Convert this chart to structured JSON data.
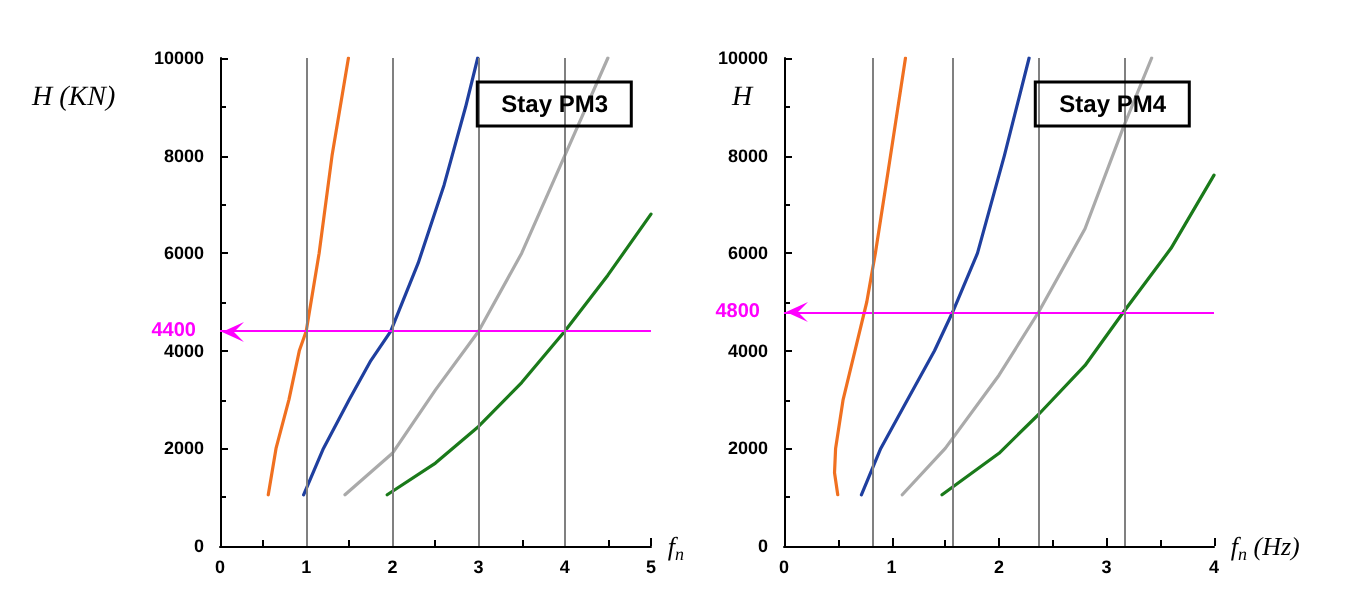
{
  "chart_data": [
    {
      "type": "line",
      "title": "Stay PM3",
      "xlabel": "f$_{n}$",
      "ylabel": "H (KN)",
      "xlim": [
        0,
        5
      ],
      "xticks": [
        0,
        1,
        2,
        3,
        4,
        5
      ],
      "ylim": [
        0,
        10000
      ],
      "yticks": [
        0,
        2000,
        4000,
        6000,
        8000,
        10000
      ],
      "grid": false,
      "marker": "none",
      "line_style": "solid",
      "series": [
        {
          "color": "#f07020",
          "x": [
            0.56,
            0.65,
            0.8,
            0.92,
            1.0,
            1.15,
            1.3,
            1.49
          ],
          "values": [
            1050,
            2000,
            3000,
            4000,
            4400,
            6000,
            8000,
            10000
          ]
        },
        {
          "color": "#1f3f9f",
          "x": [
            0.97,
            1.2,
            1.5,
            1.75,
            1.98,
            2.3,
            2.6,
            2.85,
            2.99
          ],
          "values": [
            1050,
            2000,
            3000,
            3800,
            4400,
            5800,
            7400,
            9000,
            10000
          ]
        },
        {
          "color": "#aaaaaa",
          "x": [
            1.45,
            2,
            2.5,
            3,
            3.5,
            4,
            4.5
          ],
          "values": [
            1050,
            1900,
            3200,
            4400,
            6000,
            8000,
            10000
          ]
        },
        {
          "color": "#1a7a1a",
          "x": [
            1.94,
            2.5,
            3,
            3.5,
            4,
            4.5,
            5
          ],
          "values": [
            1050,
            1700,
            2450,
            3350,
            4400,
            5550,
            6800
          ]
        }
      ],
      "ref_lines": [
        {
          "axis": "y",
          "value": 4400,
          "label": "4400",
          "color": "#ff00ff"
        },
        {
          "axis": "x",
          "value": 1,
          "color": "#808080"
        },
        {
          "axis": "x",
          "value": 2,
          "color": "#808080"
        },
        {
          "axis": "x",
          "value": 3,
          "color": "#808080"
        },
        {
          "axis": "x",
          "value": 4,
          "color": "#808080"
        }
      ]
    },
    {
      "type": "line",
      "title": "Stay PM4",
      "xlabel": "f$_{n}$ (Hz)",
      "ylabel": "H",
      "xlim": [
        0,
        4
      ],
      "xticks": [
        0,
        1,
        2,
        3,
        4
      ],
      "ylim": [
        0,
        10000
      ],
      "yticks": [
        0,
        2000,
        4000,
        6000,
        8000,
        10000
      ],
      "grid": false,
      "marker": "none",
      "line_style": "solid",
      "series": [
        {
          "color": "#f07020",
          "x": [
            0.5,
            0.47,
            0.48,
            0.55,
            0.66,
            0.77,
            0.85,
            0.97,
            1.13
          ],
          "values": [
            1050,
            1500,
            2000,
            3000,
            4000,
            5000,
            6000,
            7700,
            10000
          ]
        },
        {
          "color": "#1f3f9f",
          "x": [
            0.72,
            0.9,
            1.15,
            1.4,
            1.57,
            1.8,
            2.05,
            2.28
          ],
          "values": [
            1050,
            2000,
            3000,
            4000,
            4800,
            6000,
            8000,
            10000
          ]
        },
        {
          "color": "#aaaaaa",
          "x": [
            1.1,
            1.5,
            2,
            2.37,
            2.8,
            3.16,
            3.42
          ],
          "values": [
            1050,
            2000,
            3500,
            4800,
            6500,
            8600,
            10000
          ]
        },
        {
          "color": "#1a7a1a",
          "x": [
            1.47,
            2,
            2.37,
            2.8,
            3.16,
            3.6,
            4
          ],
          "values": [
            1050,
            1900,
            2700,
            3700,
            4800,
            6100,
            7600
          ]
        }
      ],
      "ref_lines": [
        {
          "axis": "y",
          "value": 4800,
          "label": "4800",
          "color": "#ff00ff"
        },
        {
          "axis": "x",
          "value": 0.82,
          "color": "#808080"
        },
        {
          "axis": "x",
          "value": 1.57,
          "color": "#808080"
        },
        {
          "axis": "x",
          "value": 2.37,
          "color": "#808080"
        },
        {
          "axis": "x",
          "value": 3.16,
          "color": "#808080"
        }
      ]
    }
  ]
}
